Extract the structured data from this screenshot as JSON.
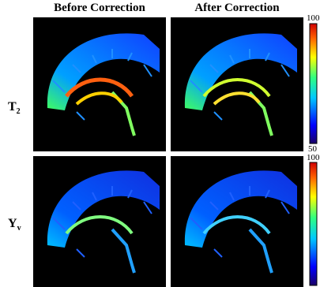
{
  "header": {
    "columns": [
      "Before Correction",
      "After Correction"
    ]
  },
  "rows": [
    {
      "label": "T",
      "subscript": "2",
      "colorbar": {
        "max": "100",
        "min": "50"
      }
    },
    {
      "label": "Y",
      "subscript": "v",
      "colorbar": {
        "max": "100"
      }
    }
  ]
}
